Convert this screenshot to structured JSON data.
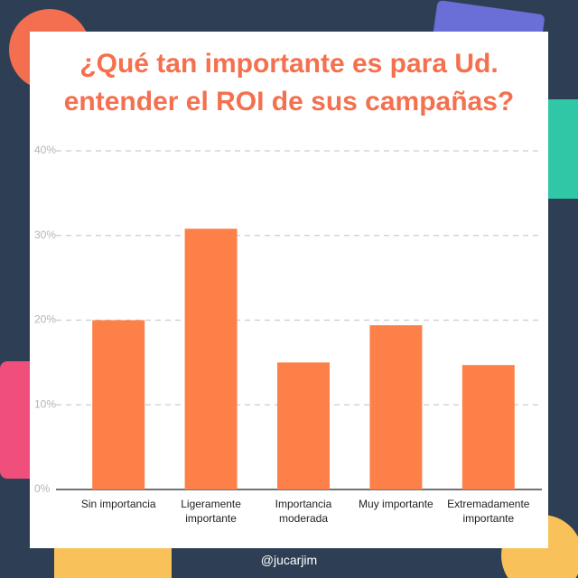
{
  "chart_data": {
    "type": "bar",
    "title": "¿Qué tan importante es para Ud. entender el ROI de sus campañas?",
    "categories": [
      "Sin importancia",
      "Ligeramente importante",
      "Importancia moderada",
      "Muy importante",
      "Extremadamente importante"
    ],
    "values": [
      20,
      30.8,
      15,
      19.4,
      14.7
    ],
    "color": "#fd8049",
    "ylim": [
      0,
      40
    ],
    "yticks": [
      {
        "value": 0,
        "label": "0%"
      },
      {
        "value": 10,
        "label": "10%"
      },
      {
        "value": 20,
        "label": "20%"
      },
      {
        "value": 30,
        "label": "30%"
      },
      {
        "value": 40,
        "label": "40%"
      }
    ],
    "grid": true
  },
  "footer": "@jucarjim"
}
